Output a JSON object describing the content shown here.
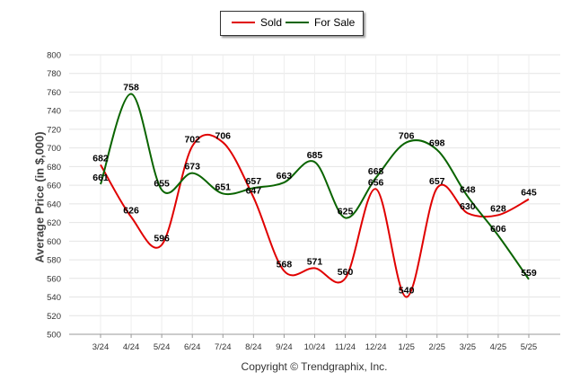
{
  "chart_data": {
    "type": "line",
    "categories": [
      "3/24",
      "4/24",
      "5/24",
      "6/24",
      "7/24",
      "8/24",
      "9/24",
      "10/24",
      "11/24",
      "12/24",
      "1/25",
      "2/25",
      "3/25",
      "4/25",
      "5/25"
    ],
    "series": [
      {
        "name": "Sold",
        "color": "#e00000",
        "values": [
          682,
          626,
          596,
          702,
          706,
          647,
          568,
          571,
          560,
          656,
          540,
          657,
          630,
          628,
          645
        ]
      },
      {
        "name": "For Sale",
        "color": "#0a6400",
        "values": [
          661,
          758,
          655,
          673,
          651,
          657,
          663,
          685,
          625,
          668,
          706,
          698,
          648,
          606,
          559
        ]
      }
    ],
    "title": "",
    "xlabel": "",
    "ylabel": "Average Price (in $,000)",
    "ylim": [
      500,
      800
    ],
    "yticks": [
      500,
      520,
      540,
      560,
      580,
      600,
      620,
      640,
      660,
      680,
      700,
      720,
      740,
      760,
      780,
      800
    ],
    "grid": true,
    "legend_position": "top-center"
  },
  "footer": {
    "copyright": "Copyright © Trendgraphix, Inc."
  }
}
